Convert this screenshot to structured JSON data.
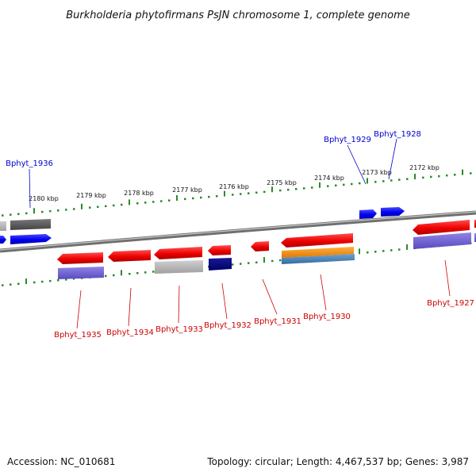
{
  "title": "Burkholderia phytofirmans PsJN chromosome 1, complete genome",
  "footer": {
    "accession": "Accession: NC_010681",
    "summary": "Topology: circular; Length: 4,467,537 bp; Genes: 3,987"
  },
  "colors": {
    "forward_gene": "#ff0000",
    "forward_gene_top_label": "#0000cc",
    "reverse_gene_label": "#cc0000",
    "tick": "#2a8a2a",
    "backbone": "#888888",
    "blue_gene": "#0000ee",
    "gray_feature": "#a8a8a8",
    "dark_gray_feature": "#555555",
    "navy_feature": "#000077",
    "purple_feature": "#6a5acd",
    "orange_feature": "#f0900a",
    "steelblue_feature": "#4682b4"
  },
  "scale": {
    "labels": [
      "2180 kbp",
      "2179 kbp",
      "2178 kbp",
      "2177 kbp",
      "2176 kbp",
      "2175 kbp",
      "2174 kbp",
      "2173 kbp",
      "2172 kbp"
    ]
  },
  "top_labels": [
    {
      "name": "Bphyt_1936"
    },
    {
      "name": "Bphyt_1929"
    },
    {
      "name": "Bphyt_1928"
    }
  ],
  "bottom_labels": [
    {
      "name": "Bphyt_1935"
    },
    {
      "name": "Bphyt_1934"
    },
    {
      "name": "Bphyt_1933"
    },
    {
      "name": "Bphyt_1932"
    },
    {
      "name": "Bphyt_1931"
    },
    {
      "name": "Bphyt_1930"
    },
    {
      "name": "Bphyt_1927"
    }
  ]
}
